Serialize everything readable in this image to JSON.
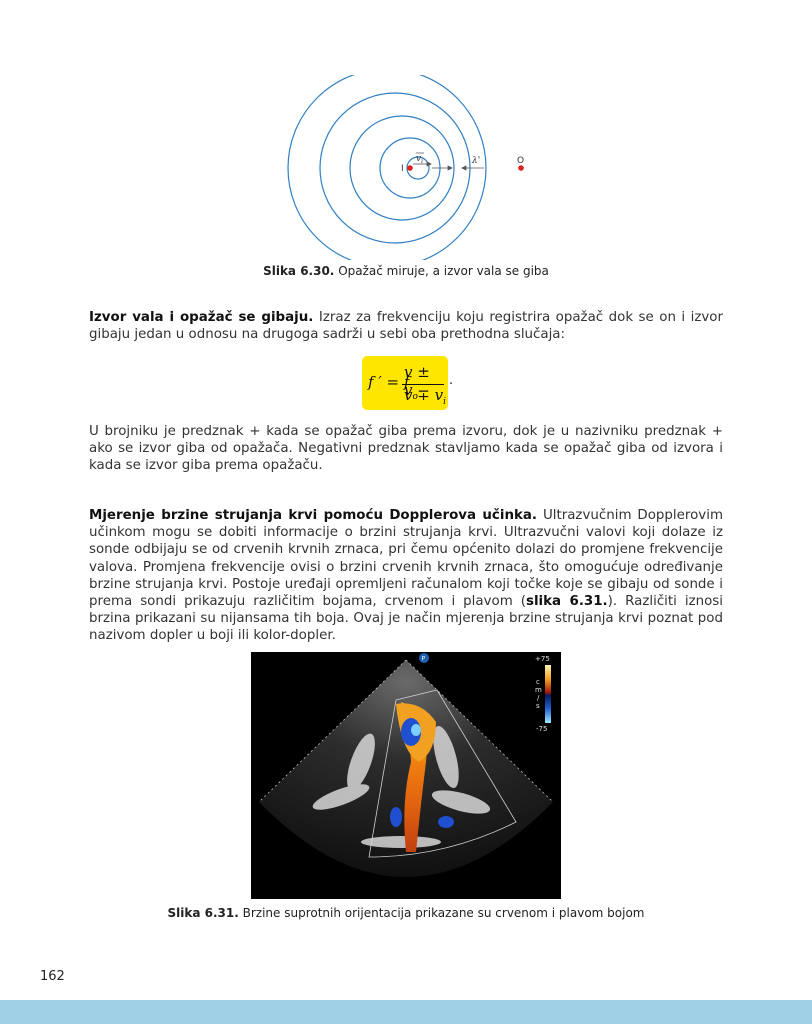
{
  "figure1": {
    "label_source": "I",
    "label_velocity": "v",
    "label_velocity_sub": "i",
    "label_wavelength": "λ'",
    "label_observer": "O",
    "caption_bold": "Slika 6.30.",
    "caption_text": " Opažač miruje, a izvor vala se giba",
    "colors": {
      "circles": "#2f7fc4",
      "points": "#e0201c"
    }
  },
  "para1": {
    "bold": "Izvor vala i opažač se gibaju.",
    "text": " Izraz za frekvenciju koju registrira opažač dok se on i izvor gibaju jedan u odnosu na drugoga sadrži u sebi oba prethodna slučaja:"
  },
  "formula": {
    "lhs": "f ′ = f",
    "numerator": "v ± v",
    "numerator_sub": "o",
    "denominator": "v ∓ v",
    "denominator_sub": "i",
    "trailing": ".",
    "highlight_color": "#ffe600"
  },
  "para2": {
    "text": "U brojniku je predznak + kada se opažač giba prema izvoru, dok je u nazivniku predznak + ako se izvor giba od opažača. Negativni predznak stavljamo kada se opažač giba od izvora i kada se izvor giba prema opažaču."
  },
  "para3": {
    "bold": "Mjerenje brzine strujanja krvi pomoću Dopplerova učinka.",
    "text_a": " Ultrazvučnim Dopplerovim učinkom mogu se dobiti informacije o brzini strujanja krvi. Ultrazvučni valovi koji dolaze iz sonde odbijaju se od crvenih krvnih zrnaca, pri čemu općenito dolazi do promjene frekvencije valova. Promjena frekvencije ovisi o brzini crvenih krvnih zrnaca, što omogućuje određivanje brzine strujanja krvi. Postoje uređaji opremljeni računalom koji točke koje se gibaju od sonde i prema sondi prikazuju različitim bojama, crvenom i plavom (",
    "ref": "slika 6.31.",
    "text_b": "). Različiti iznosi brzina prikazani su nijansama tih boja. Ovaj je način mjerenja brzine strujanja krvi poznat pod nazivom dopler u boji ili kolor-dopler."
  },
  "figure2": {
    "scale_top": "+75",
    "scale_unit_1": "c",
    "scale_unit_2": "m",
    "scale_unit_3": "/",
    "scale_unit_4": "s",
    "scale_bottom": "-75",
    "probe_marker": "P",
    "caption_bold": "Slika 6.31.",
    "caption_text": " Brzine suprotnih orijentacija prikazane su crvenom i plavom bojom"
  },
  "page_number": "162",
  "footer_color": "#9fcfe4"
}
